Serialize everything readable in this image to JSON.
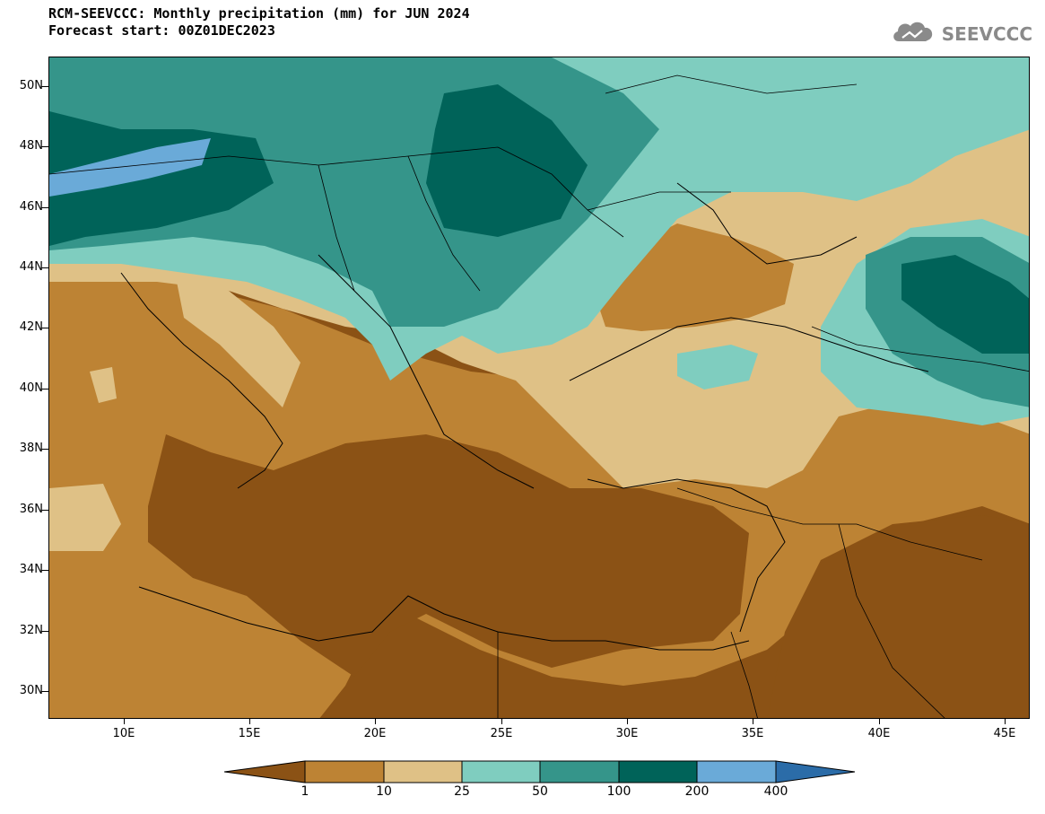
{
  "title": {
    "line1": "RCM-SEEVCCC: Monthly precipitation (mm) for JUN 2024",
    "line2": "Forecast start: 00Z01DEC2023"
  },
  "logo": {
    "text": "SEEVCCC",
    "icon": "cloud-icon"
  },
  "axes": {
    "lat_labels": [
      "50N",
      "48N",
      "46N",
      "44N",
      "42N",
      "40N",
      "38N",
      "36N",
      "34N",
      "32N",
      "30N"
    ],
    "lon_labels": [
      "10E",
      "15E",
      "20E",
      "25E",
      "30E",
      "35E",
      "40E",
      "45E"
    ],
    "lat_range": [
      29,
      51
    ],
    "lon_range": [
      7,
      46
    ]
  },
  "colorbar": {
    "labels": [
      "1",
      "10",
      "25",
      "50",
      "100",
      "200",
      "400"
    ],
    "colors": [
      "#8b5215",
      "#bd8334",
      "#dfc186",
      "#7fcdbf",
      "#35958a",
      "#006359",
      "#6aaad8",
      "#2b6ca8"
    ]
  },
  "colors": {
    "bin_lt1": "#8b5215",
    "bin_1_10": "#bd8334",
    "bin_10_25": "#dfc186",
    "bin_25_50": "#7fcdbf",
    "bin_50_100": "#35958a",
    "bin_100_200": "#006359",
    "bin_200_400": "#6aaad8",
    "bin_gt400": "#2b6ca8"
  }
}
